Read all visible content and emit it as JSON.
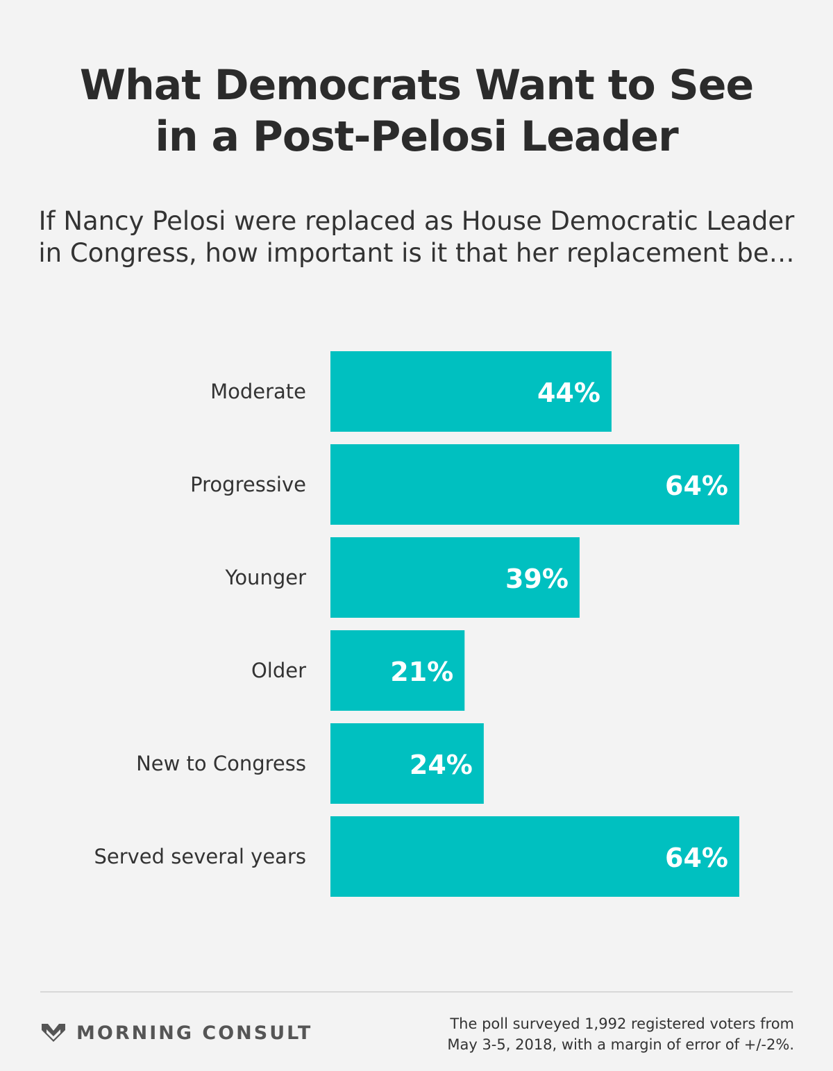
{
  "header": {
    "title_line1": "What Democrats Want to See",
    "title_line2": "in a Post-Pelosi Leader",
    "subtitle_line1": "If Nancy Pelosi were replaced as House Democratic Leader",
    "subtitle_line2": "in Congress, how important is it that her replacement be…"
  },
  "chart_data": {
    "type": "bar",
    "orientation": "horizontal",
    "categories": [
      "Moderate",
      "Progressive",
      "Younger",
      "Older",
      "New to Congress",
      "Served several years"
    ],
    "values": [
      44,
      64,
      39,
      21,
      24,
      64
    ],
    "value_labels": [
      "44%",
      "64%",
      "39%",
      "21%",
      "24%",
      "64%"
    ],
    "unit": "%",
    "title": "",
    "xlabel": "",
    "ylabel": "",
    "xlim": [
      0,
      64
    ],
    "grid": false,
    "legend": "none",
    "bar_color": "#00c0c0"
  },
  "footer": {
    "brand_name": "MORNING CONSULT",
    "brand_logo_icon": "morning-consult-chevron-icon",
    "note_line1": "The poll surveyed 1,992 registered voters from",
    "note_line2": "May 3-5, 2018, with a margin of error of +/-2%."
  },
  "colors": {
    "background": "#f3f3f3",
    "bar": "#00c0c0",
    "bar_label": "#ffffff",
    "text": "#333333",
    "logo": "#555555"
  }
}
